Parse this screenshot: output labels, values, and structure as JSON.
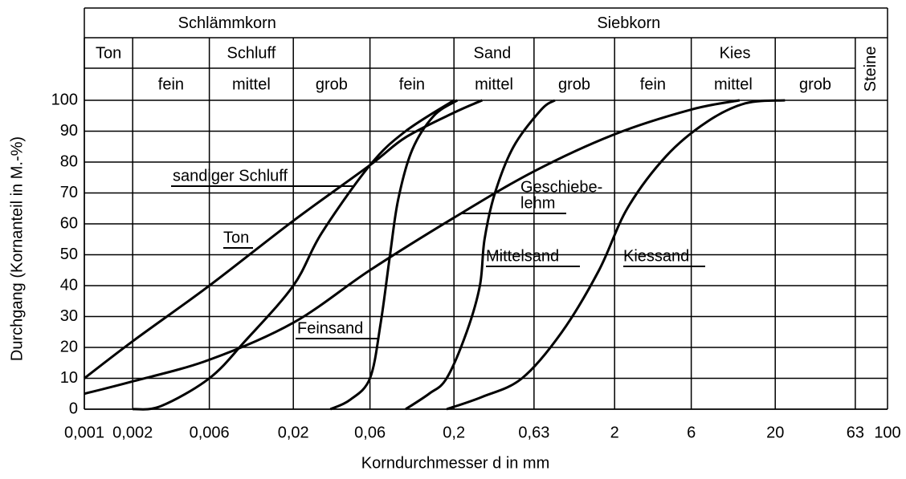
{
  "chart_data": {
    "type": "line",
    "xlabel": "Korndurchmesser d in mm",
    "ylabel": "Durchgang (Kornanteil in M.-%)",
    "xscale": "log",
    "xlim": [
      0.001,
      100
    ],
    "ylim": [
      0,
      100
    ],
    "xticks": [
      {
        "value": 0.001,
        "label": "0,001"
      },
      {
        "value": 0.002,
        "label": "0,002"
      },
      {
        "value": 0.006,
        "label": "0,006"
      },
      {
        "value": 0.02,
        "label": "0,02"
      },
      {
        "value": 0.06,
        "label": "0,06"
      },
      {
        "value": 0.2,
        "label": "0,2"
      },
      {
        "value": 0.63,
        "label": "0,63"
      },
      2,
      6,
      20,
      63,
      100
    ],
    "yticks": [
      0,
      10,
      20,
      30,
      40,
      50,
      60,
      70,
      80,
      90,
      100
    ],
    "grid": true,
    "color": "#000000",
    "header": {
      "row1": [
        "Schlämmkorn",
        "Siebkorn"
      ],
      "row2": [
        "Ton",
        "Schluff",
        "Sand",
        "Kies",
        "Steine"
      ],
      "row3": [
        "fein",
        "mittel",
        "grob",
        "fein",
        "mittel",
        "grob",
        "fein",
        "mittel",
        "grob"
      ]
    },
    "series": [
      {
        "name": [
          "sandiger Schluff"
        ],
        "x": [
          0.001,
          0.002,
          0.006,
          0.02,
          0.06,
          0.1,
          0.2,
          0.3
        ],
        "values": [
          10,
          22,
          40,
          61,
          79,
          88,
          96,
          100
        ]
      },
      {
        "name": [
          "Ton"
        ],
        "x": [
          0.002,
          0.003,
          0.006,
          0.01,
          0.02,
          0.03,
          0.06,
          0.1,
          0.2
        ],
        "values": [
          0,
          1,
          10,
          22,
          40,
          57,
          79,
          90,
          100
        ]
      },
      {
        "name": [
          "Feinsand"
        ],
        "x": [
          0.034,
          0.045,
          0.06,
          0.07,
          0.08,
          0.09,
          0.11,
          0.15,
          0.21
        ],
        "values": [
          0,
          3,
          10,
          28,
          50,
          68,
          84,
          95,
          100
        ]
      },
      {
        "name": [
          "Geschiebe-",
          "lehm"
        ],
        "x": [
          0.001,
          0.002,
          0.006,
          0.02,
          0.06,
          0.2,
          0.63,
          2,
          6,
          12
        ],
        "values": [
          5,
          9,
          16,
          28,
          45,
          62,
          77,
          89,
          97,
          100
        ]
      },
      {
        "name": [
          "Mittelsand"
        ],
        "x": [
          0.1,
          0.14,
          0.18,
          0.24,
          0.29,
          0.31,
          0.36,
          0.47,
          0.7,
          0.85
        ],
        "values": [
          0,
          5,
          10,
          25,
          40,
          55,
          70,
          85,
          97,
          100
        ]
      },
      {
        "name": [
          "Kiessand"
        ],
        "x": [
          0.18,
          0.3,
          0.53,
          0.94,
          1.6,
          2.4,
          4.2,
          7.5,
          13,
          23
        ],
        "values": [
          0,
          4,
          10,
          25,
          45,
          65,
          82,
          93,
          99,
          100
        ]
      }
    ]
  }
}
